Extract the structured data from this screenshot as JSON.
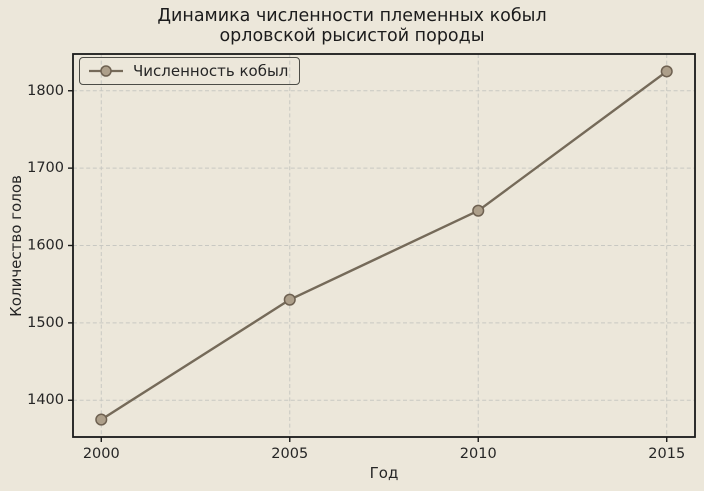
{
  "chart_data": {
    "type": "line",
    "title": "Динамика численности племенных кобыл орловской рысистой породы",
    "title_lines": [
      "Динамика численности племенных кобыл",
      "орловской рысистой породы"
    ],
    "xlabel": "Год",
    "ylabel": "Количество голов",
    "x": [
      2000,
      2005,
      2010,
      2015
    ],
    "series": [
      {
        "name": "Численность кобыл",
        "values": [
          1375,
          1530,
          1645,
          1825
        ]
      }
    ],
    "x_ticks": [
      2000,
      2005,
      2010,
      2015
    ],
    "y_ticks": [
      1400,
      1500,
      1600,
      1700,
      1800
    ],
    "xlim": [
      1999.25,
      2015.75
    ],
    "ylim": [
      1352.5,
      1847.5
    ],
    "grid": true,
    "grid_style": "dashed",
    "legend": {
      "position": "upper-left",
      "entries": [
        "Численность кобыл"
      ]
    },
    "colors": {
      "background": "#ece7da",
      "line": "#756a59",
      "marker_fill": "#ad9f8a",
      "marker_edge": "#6e6151",
      "grid": "#c8c8c2",
      "spine": "#1a1a1a",
      "text": "#262626"
    }
  }
}
